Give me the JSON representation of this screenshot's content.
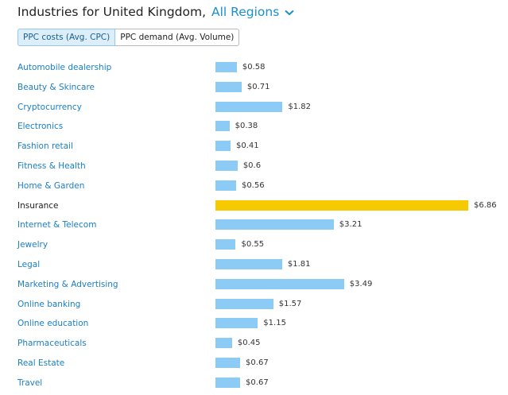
{
  "header": {
    "title": "Industries for United Kingdom,",
    "region": "All Regions",
    "chevron_icon": "chevron-down-icon"
  },
  "tabs": [
    {
      "label": "PPC costs (Avg. CPC)",
      "active": true
    },
    {
      "label": "PPC demand (Avg. Volume)",
      "active": false
    }
  ],
  "colors": {
    "bar": "#8ccbf6",
    "highlight": "#f7c900",
    "link": "#1a7ec8"
  },
  "chart_data": {
    "type": "bar",
    "orientation": "horizontal",
    "categories": [
      "Automobile dealership",
      "Beauty & Skincare",
      "Cryptocurrency",
      "Electronics",
      "Fashion retail",
      "Fitness & Health",
      "Home & Garden",
      "Insurance",
      "Internet & Telecom",
      "Jewelry",
      "Legal",
      "Marketing & Advertising",
      "Online banking",
      "Online education",
      "Pharmaceuticals",
      "Real Estate",
      "Travel"
    ],
    "values": [
      0.58,
      0.71,
      1.82,
      0.38,
      0.41,
      0.6,
      0.56,
      6.86,
      3.21,
      0.55,
      1.81,
      3.49,
      1.57,
      1.15,
      0.45,
      0.67,
      0.67
    ],
    "value_labels": [
      "$0.58",
      "$0.71",
      "$1.82",
      "$0.38",
      "$0.41",
      "$0.6",
      "$0.56",
      "$6.86",
      "$3.21",
      "$0.55",
      "$1.81",
      "$3.49",
      "$1.57",
      "$1.15",
      "$0.45",
      "$0.67",
      "$0.67"
    ],
    "highlighted_category": "Insurance",
    "xlim": [
      0,
      6.86
    ]
  }
}
